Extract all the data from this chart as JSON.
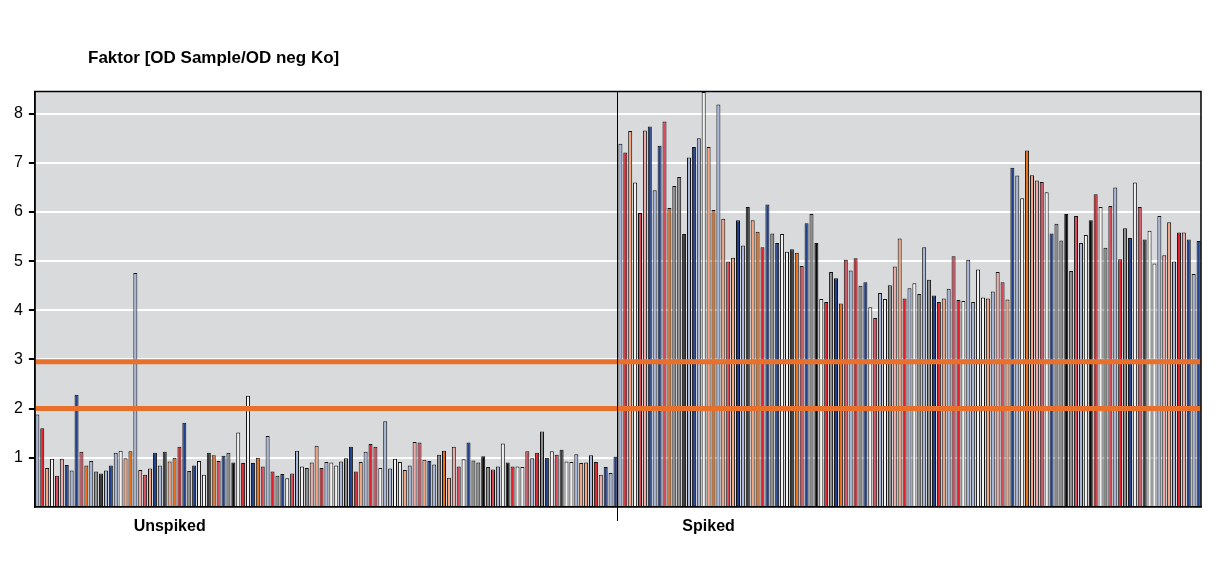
{
  "chart_data": {
    "type": "bar",
    "ylabel": "Faktor [OD Sample/OD neg Ko]",
    "categories": [
      null,
      null,
      null,
      null,
      null,
      null,
      null,
      null,
      null,
      null,
      null,
      null,
      null,
      null,
      null,
      null,
      null,
      null,
      null,
      null,
      null,
      null,
      null,
      null,
      null,
      null,
      null,
      "Unspiked",
      null,
      null,
      null,
      null,
      null,
      null,
      null,
      null,
      null,
      null,
      null,
      null,
      null,
      null,
      null,
      null,
      null,
      null,
      null,
      null,
      null,
      null,
      null,
      null,
      null,
      null,
      null,
      null,
      null,
      null,
      null,
      null,
      null,
      null,
      null,
      null,
      null,
      null,
      null,
      null,
      null,
      null,
      null,
      null,
      null,
      null,
      null,
      null,
      null,
      null,
      null,
      null,
      null,
      null,
      null,
      null,
      null,
      null,
      null,
      null,
      null,
      null,
      null,
      null,
      null,
      null,
      null,
      null,
      null,
      null,
      null,
      null,
      null,
      null,
      null,
      null,
      null,
      null,
      null,
      null,
      null,
      null,
      null,
      null,
      null,
      null,
      null,
      null,
      null,
      null,
      null,
      null,
      null,
      null,
      null,
      null,
      null,
      null,
      null,
      null,
      null,
      null,
      null,
      null,
      null,
      null,
      null,
      null,
      null,
      "Spiked",
      null,
      null,
      null,
      null,
      null,
      null,
      null,
      null,
      null,
      null,
      null,
      null,
      null,
      null,
      null,
      null,
      null,
      null,
      null,
      null,
      null,
      null,
      null,
      null,
      null,
      null,
      null,
      null,
      null,
      null,
      null,
      null,
      null,
      null,
      null,
      null,
      null,
      null,
      null,
      null,
      null,
      null,
      null,
      null,
      null,
      null,
      null,
      null,
      null,
      null,
      null,
      null,
      null,
      null,
      null,
      null,
      null,
      null,
      null,
      null,
      null,
      null,
      null,
      null,
      null,
      null,
      null,
      null,
      null,
      null,
      null,
      null,
      null,
      null,
      null,
      null,
      null,
      null,
      null,
      null,
      null,
      null,
      null,
      null,
      null,
      null,
      null,
      null,
      null,
      null,
      null,
      null,
      null,
      null,
      null,
      null,
      null,
      null,
      null,
      null
    ],
    "values": [
      1.88,
      1.6,
      0.79,
      0.98,
      0.63,
      0.98,
      0.85,
      0.74,
      2.28,
      1.12,
      0.84,
      0.93,
      0.72,
      0.68,
      0.74,
      0.84,
      1.1,
      1.14,
      0.99,
      1.13,
      4.76,
      0.75,
      0.65,
      0.78,
      1.1,
      0.84,
      1.12,
      0.92,
      1.0,
      1.22,
      1.71,
      0.73,
      0.84,
      0.93,
      0.65,
      1.1,
      1.05,
      0.93,
      1.04,
      1.1,
      0.9,
      1.51,
      0.89,
      2.26,
      0.89,
      1.0,
      0.82,
      1.44,
      0.72,
      0.63,
      0.67,
      0.58,
      0.68,
      1.14,
      0.82,
      0.79,
      0.9,
      1.24,
      0.79,
      0.91,
      0.9,
      0.84,
      0.92,
      0.99,
      1.22,
      0.72,
      0.91,
      1.12,
      1.28,
      1.22,
      0.79,
      1.74,
      0.78,
      0.98,
      0.91,
      0.75,
      0.84,
      1.32,
      1.31,
      0.96,
      0.93,
      0.86,
      1.06,
      1.14,
      0.59,
      1.22,
      0.82,
      0.97,
      1.31,
      0.94,
      0.9,
      1.03,
      0.81,
      0.76,
      0.82,
      1.29,
      0.9,
      0.82,
      0.82,
      0.81,
      1.13,
      0.99,
      1.1,
      1.53,
      1.0,
      1.13,
      1.06,
      1.16,
      0.92,
      0.91,
      1.07,
      0.89,
      0.9,
      1.05,
      0.91,
      0.65,
      0.81,
      0.69,
      1.02,
      7.39,
      7.21,
      7.65,
      6.6,
      5.98,
      7.66,
      7.74,
      6.44,
      7.35,
      7.84,
      6.08,
      6.53,
      6.71,
      5.55,
      7.11,
      7.32,
      7.5,
      8.44,
      7.32,
      6.04,
      8.19,
      5.86,
      4.99,
      5.07,
      5.83,
      5.32,
      6.1,
      5.83,
      5.6,
      5.28,
      6.15,
      5.56,
      5.37,
      5.55,
      5.19,
      5.24,
      5.17,
      4.9,
      5.77,
      5.96,
      5.37,
      4.23,
      4.17,
      4.78,
      4.65,
      4.14,
      5.03,
      4.81,
      5.06,
      4.5,
      4.57,
      4.06,
      3.84,
      4.35,
      4.23,
      4.51,
      4.89,
      5.46,
      4.24,
      4.45,
      4.55,
      4.33,
      5.28,
      4.62,
      4.3,
      4.17,
      4.24,
      4.44,
      5.1,
      4.21,
      4.19,
      5.03,
      4.17,
      4.83,
      4.26,
      4.24,
      4.38,
      4.78,
      4.57,
      4.22,
      6.9,
      6.74,
      6.28,
      7.25,
      6.75,
      6.64,
      6.61,
      6.4,
      5.56,
      5.76,
      5.42,
      5.96,
      4.8,
      5.92,
      5.37,
      5.53,
      5.83,
      6.36,
      6.1,
      5.27,
      6.12,
      6.5,
      5.04,
      5.67,
      5.47,
      6.6,
      6.1,
      5.44,
      5.62,
      4.95,
      5.92,
      5.12,
      5.79,
      4.99,
      5.58,
      5.58,
      5.44,
      4.74,
      5.41
    ],
    "colors": [
      "#a7b6d9",
      "#e3202b",
      "#f4a582",
      "#f2f2f2",
      "#d94a5a",
      "#eeaaa8",
      "#1f3f8f",
      "#a7b6d9",
      "#1f3f8f",
      "#d94a5a",
      "#e8701c",
      "#a7b6d9",
      "#8c8c8c",
      "#3a3a3a",
      "#a7b6d9",
      "#1f3f8f",
      "#a7b6d9",
      "#f2f2f2",
      "#f4a582",
      "#e8701c",
      "#a7b6d9",
      "#eeaaa8",
      "#d94a5a",
      "#f4a582",
      "#1f3f8f",
      "#a7b6d9",
      "#3a3a3a",
      "#f4a582",
      "#e8701c",
      "#e3202b",
      "#1f3f8f",
      "#8c8c8c",
      "#1f3f8f",
      "#f2f2f2",
      "#f2f2f2",
      "#3a3a3a",
      "#e8701c",
      "#d94a5a",
      "#1f3f8f",
      "#8c8c8c",
      "#0a0a0a",
      "#f2f2f2",
      "#e3202b",
      "#f2f2f2",
      "#1f3f8f",
      "#e8701c",
      "#d94a5a",
      "#a7b6d9",
      "#e3202b",
      "#8c8c8c",
      "#1f3f8f",
      "#f2f2f2",
      "#d94a5a",
      "#a7b6d9",
      "#f2f2f2",
      "#8c8c8c",
      "#eeaaa8",
      "#f4a582",
      "#e3202b",
      "#a7b6d9",
      "#f2f2f2",
      "#f2f2f2",
      "#a7b6d9",
      "#8c8c8c",
      "#1f3f8f",
      "#e3202b",
      "#f4a582",
      "#a7b6d9",
      "#e3202b",
      "#d94a5a",
      "#f2f2f2",
      "#a7b6d9",
      "#a7b6d9",
      "#f2f2f2",
      "#f2f2f2",
      "#f4a582",
      "#a7b6d9",
      "#eeaaa8",
      "#d94a5a",
      "#f4a582",
      "#1f3f8f",
      "#a7b6d9",
      "#8c8c8c",
      "#e8701c",
      "#f4a582",
      "#eeaaa8",
      "#d94a5a",
      "#f2f2f2",
      "#1f3f8f",
      "#8c8c8c",
      "#8c8c8c",
      "#0a0a0a",
      "#8c8c8c",
      "#d94a5a",
      "#a7b6d9",
      "#f2f2f2",
      "#0a0a0a",
      "#e3202b",
      "#f2f2f2",
      "#f2f2f2",
      "#d94a5a",
      "#a7b6d9",
      "#e3202b",
      "#8c8c8c",
      "#1f3f8f",
      "#f2f2f2",
      "#d94a5a",
      "#3a3a3a",
      "#f2f2f2",
      "#f2f2f2",
      "#a7b6d9",
      "#f4a582",
      "#f4a582",
      "#a7b6d9",
      "#e3202b",
      "#eeaaa8",
      "#1f3f8f",
      "#a7b6d9",
      "#1f3f8f",
      "#a7b6d9",
      "#e3202b",
      "#f4a582",
      "#f2f2f2",
      "#d94a5a",
      "#eeaaa8",
      "#1f3f8f",
      "#a7b6d9",
      "#1f3f8f",
      "#d94a5a",
      "#e8701c",
      "#8c8c8c",
      "#8c8c8c",
      "#3a3a3a",
      "#a7b6d9",
      "#1f3f8f",
      "#a7b6d9",
      "#f2f2f2",
      "#f4a582",
      "#e8701c",
      "#a7b6d9",
      "#f4a582",
      "#d94a5a",
      "#f4a582",
      "#1f3f8f",
      "#a7b6d9",
      "#3a3a3a",
      "#f4a582",
      "#e8701c",
      "#e3202b",
      "#1f3f8f",
      "#8c8c8c",
      "#1f3f8f",
      "#f2f2f2",
      "#f2f2f2",
      "#3a3a3a",
      "#e8701c",
      "#d94a5a",
      "#1f3f8f",
      "#8c8c8c",
      "#0a0a0a",
      "#f2f2f2",
      "#e3202b",
      "#8c8c8c",
      "#1f3f8f",
      "#e8701c",
      "#d94a5a",
      "#a7b6d9",
      "#e3202b",
      "#8c8c8c",
      "#1f3f8f",
      "#f2f2f2",
      "#d94a5a",
      "#a7b6d9",
      "#f2f2f2",
      "#8c8c8c",
      "#eeaaa8",
      "#f4a582",
      "#e3202b",
      "#a7b6d9",
      "#f2f2f2",
      "#8c8c8c",
      "#a7b6d9",
      "#8c8c8c",
      "#1f3f8f",
      "#e3202b",
      "#f4a582",
      "#a7b6d9",
      "#d94a5a",
      "#e3202b",
      "#f2f2f2",
      "#a7b6d9",
      "#a7b6d9",
      "#f2f2f2",
      "#f2f2f2",
      "#f4a582",
      "#a7b6d9",
      "#eeaaa8",
      "#d94a5a",
      "#f4a582",
      "#1f3f8f",
      "#a7b6d9",
      "#f2f2f2",
      "#e8701c",
      "#f4a582",
      "#eeaaa8",
      "#d94a5a",
      "#f2f2f2",
      "#1f3f8f",
      "#8c8c8c",
      "#8c8c8c",
      "#0a0a0a",
      "#8c8c8c",
      "#d94a5a",
      "#a7b6d9",
      "#f2f2f2",
      "#0a0a0a",
      "#e3202b",
      "#f2f2f2",
      "#8c8c8c",
      "#d94a5a",
      "#a7b6d9",
      "#e3202b",
      "#8c8c8c",
      "#1f3f8f",
      "#f2f2f2",
      "#d94a5a",
      "#3a3a3a",
      "#f2f2f2",
      "#f2f2f2",
      "#a7b6d9",
      "#eeaaa8",
      "#f4a582",
      "#a7b6d9",
      "#e3202b",
      "#eeaaa8",
      "#1f3f8f",
      "#a7b6d9",
      "#1f3f8f"
    ],
    "ylim": [
      0,
      8.45
    ],
    "yticks": [
      1,
      2,
      3,
      4,
      5,
      6,
      7,
      8
    ],
    "grid": "y",
    "ref_lines": [
      {
        "axis": "y",
        "value": 2,
        "color": "#e8702a"
      },
      {
        "axis": "y",
        "value": 2.95,
        "color": "#e8702a"
      }
    ]
  }
}
